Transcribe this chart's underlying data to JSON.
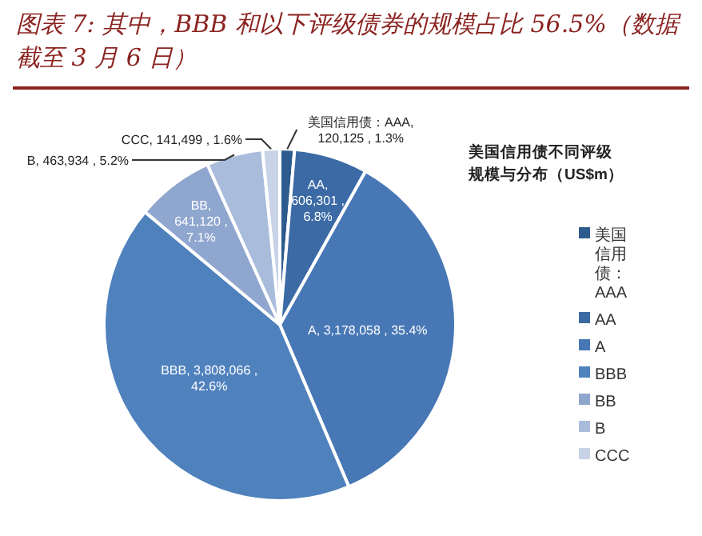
{
  "chart_data": {
    "type": "pie",
    "title": "图表 7: 其中，BBB 和以下评级债券的规模占比 56.5%（数据截至 3 月 6 日）",
    "subtitle": "美国信用债不同评级规模与分布（US$m）",
    "categories": [
      "美国信用债：AAA",
      "AA",
      "A",
      "BBB",
      "BB",
      "B",
      "CCC"
    ],
    "values": [
      120125,
      606301,
      3178058,
      3808066,
      641120,
      463934,
      141499
    ],
    "value_labels": [
      "美国信用债：AAA, 120,125 , 1.3%",
      "AA, 606,301 , 6.8%",
      "A, 3,178,058 , 35.4%",
      "BBB, 3,808,066 , 42.6%",
      "BB, 641,120 , 7.1%",
      "B, 463,934 , 5.2%",
      "CCC, 141,499 , 1.6%"
    ],
    "colors": [
      "#2e5b8e",
      "#3b6aa5",
      "#4777b5",
      "#4f81bd",
      "#8fa6cf",
      "#a9bcdc",
      "#c8d3e8"
    ],
    "legend": "right"
  }
}
